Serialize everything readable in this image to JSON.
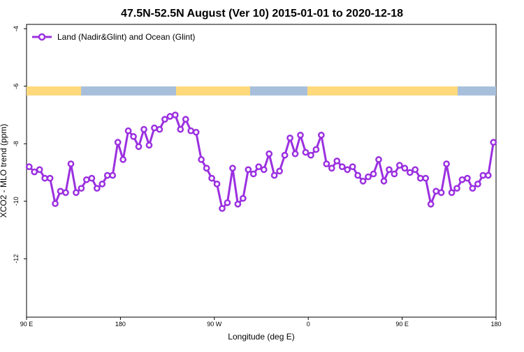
{
  "chart_data": {
    "type": "line",
    "title": "47.5N-52.5N August (Ver 10)   2015-01-01 to 2020-12-18",
    "x_label": "Longitude (deg E)",
    "y_label": "XCO2 - MLO trend (ppm)",
    "legend_position": "top-left",
    "xlim": [
      90,
      540
    ],
    "ylim": [
      -14.03,
      -3.85
    ],
    "xticks": [
      {
        "value": 90,
        "label": "90 E"
      },
      {
        "value": 180,
        "label": "180"
      },
      {
        "value": 270,
        "label": "90 W"
      },
      {
        "value": 360,
        "label": "0"
      },
      {
        "value": 450,
        "label": "90 E"
      },
      {
        "value": 540,
        "label": "180"
      }
    ],
    "yticks": [
      -4,
      -6,
      -8,
      -10,
      -12
    ],
    "x": [
      92.5,
      97.5,
      102.5,
      107.5,
      112.5,
      117.5,
      122.5,
      127.5,
      132.5,
      137.5,
      142.5,
      147.5,
      152.5,
      157.5,
      162.5,
      167.5,
      172.5,
      177.5,
      182.5,
      187.5,
      192.5,
      197.5,
      202.5,
      207.5,
      212.5,
      217.5,
      222.5,
      227.5,
      232.5,
      237.5,
      242.5,
      247.5,
      252.5,
      257.5,
      262.5,
      267.5,
      272.5,
      277.5,
      282.5,
      287.5,
      292.5,
      297.5,
      302.5,
      307.5,
      312.5,
      317.5,
      322.5,
      327.5,
      332.5,
      337.5,
      342.5,
      347.5,
      352.5,
      357.5,
      362.5,
      367.5,
      372.5,
      377.5,
      382.5,
      387.5,
      392.5,
      397.5,
      402.5,
      407.5,
      412.5,
      417.5,
      422.5,
      427.5,
      432.5,
      437.5,
      442.5,
      447.5,
      452.5,
      457.5,
      462.5,
      467.5,
      472.5,
      477.5,
      482.5,
      487.5,
      492.5,
      497.5,
      502.5,
      507.5,
      512.5,
      517.5,
      522.5,
      527.5,
      532.5,
      537.5
    ],
    "series": [
      {
        "name": "Land (Nadir&Glint) and Ocean (Glint)",
        "color": "#9b30e0",
        "values": [
          -8.8,
          -8.98,
          -8.9,
          -9.2,
          -9.2,
          -10.08,
          -9.65,
          -9.7,
          -8.7,
          -9.7,
          -9.55,
          -9.25,
          -9.2,
          -9.55,
          -9.4,
          -9.1,
          -9.1,
          -7.95,
          -8.55,
          -7.55,
          -7.75,
          -8.1,
          -7.5,
          -8.05,
          -7.45,
          -7.5,
          -7.15,
          -7.05,
          -7.0,
          -7.5,
          -7.15,
          -7.55,
          -7.6,
          -8.55,
          -8.85,
          -9.2,
          -9.4,
          -10.25,
          -10.05,
          -8.85,
          -10.1,
          -9.9,
          -8.9,
          -9.05,
          -8.8,
          -8.9,
          -8.35,
          -9.1,
          -8.95,
          -8.4,
          -7.8,
          -8.35,
          -7.7,
          -8.3,
          -8.4,
          -8.2,
          -7.7,
          -8.7,
          -8.85,
          -8.6,
          -8.8,
          -8.9,
          -8.8,
          -9.1,
          -9.3,
          -9.15,
          -9.05,
          -8.55,
          -9.3,
          -8.9,
          -9.05,
          -8.75,
          -8.85,
          -9.0,
          -8.9,
          -9.2,
          -9.2,
          -10.1,
          -9.65,
          -9.7,
          -8.7,
          -9.7,
          -9.55,
          -9.25,
          -9.2,
          -9.55,
          -9.4,
          -9.1,
          -9.1,
          -7.95
        ]
      }
    ]
  }
}
